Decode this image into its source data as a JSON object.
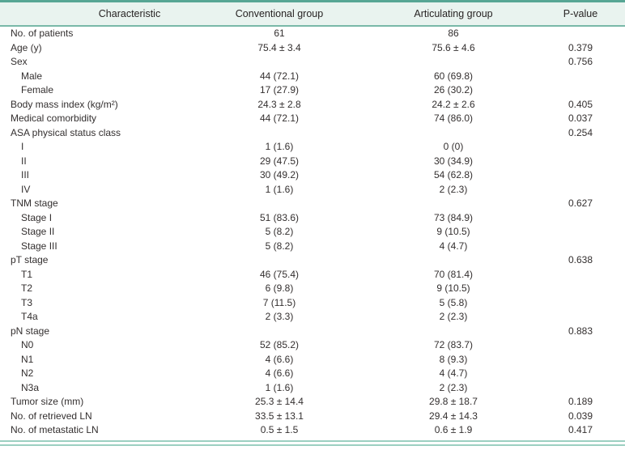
{
  "header": {
    "characteristic": "Characteristic",
    "conventional": "Conventional group",
    "articulating": "Articulating group",
    "p_value": "P-value"
  },
  "colors": {
    "header_bg": "#e9f3ef",
    "rule_dark": "#57a694",
    "rule_medium": "#79b9a8",
    "rule_light": "#9ccfc1",
    "text": "#332f2f"
  },
  "rows": [
    {
      "label": "No. of patients",
      "indent": false,
      "conventional": "61",
      "articulating": "86",
      "p": ""
    },
    {
      "label": "Age (y)",
      "indent": false,
      "conventional": "75.4 ± 3.4",
      "articulating": "75.6 ± 4.6",
      "p": "0.379"
    },
    {
      "label": "Sex",
      "indent": false,
      "conventional": "",
      "articulating": "",
      "p": "0.756"
    },
    {
      "label": "Male",
      "indent": true,
      "conventional": "44 (72.1)",
      "articulating": "60 (69.8)",
      "p": ""
    },
    {
      "label": "Female",
      "indent": true,
      "conventional": "17 (27.9)",
      "articulating": "26 (30.2)",
      "p": ""
    },
    {
      "label": "Body mass index (kg/m²)",
      "indent": false,
      "conventional": "24.3 ± 2.8",
      "articulating": "24.2 ± 2.6",
      "p": "0.405"
    },
    {
      "label": "Medical comorbidity",
      "indent": false,
      "conventional": "44 (72.1)",
      "articulating": "74 (86.0)",
      "p": "0.037"
    },
    {
      "label": "ASA physical status class",
      "indent": false,
      "conventional": "",
      "articulating": "",
      "p": "0.254"
    },
    {
      "label": "I",
      "indent": true,
      "conventional": "1 (1.6)",
      "articulating": "0 (0)",
      "p": ""
    },
    {
      "label": "II",
      "indent": true,
      "conventional": "29 (47.5)",
      "articulating": "30 (34.9)",
      "p": ""
    },
    {
      "label": "III",
      "indent": true,
      "conventional": "30 (49.2)",
      "articulating": "54 (62.8)",
      "p": ""
    },
    {
      "label": "IV",
      "indent": true,
      "conventional": "1 (1.6)",
      "articulating": "2 (2.3)",
      "p": ""
    },
    {
      "label": "TNM stage",
      "indent": false,
      "conventional": "",
      "articulating": "",
      "p": "0.627"
    },
    {
      "label": "Stage I",
      "indent": true,
      "conventional": "51 (83.6)",
      "articulating": "73 (84.9)",
      "p": ""
    },
    {
      "label": "Stage II",
      "indent": true,
      "conventional": "5 (8.2)",
      "articulating": "9 (10.5)",
      "p": ""
    },
    {
      "label": "Stage III",
      "indent": true,
      "conventional": "5 (8.2)",
      "articulating": "4 (4.7)",
      "p": ""
    },
    {
      "label": "pT stage",
      "indent": false,
      "conventional": "",
      "articulating": "",
      "p": "0.638"
    },
    {
      "label": "T1",
      "indent": true,
      "conventional": "46 (75.4)",
      "articulating": "70 (81.4)",
      "p": ""
    },
    {
      "label": "T2",
      "indent": true,
      "conventional": "6 (9.8)",
      "articulating": "9 (10.5)",
      "p": ""
    },
    {
      "label": "T3",
      "indent": true,
      "conventional": "7 (11.5)",
      "articulating": "5 (5.8)",
      "p": ""
    },
    {
      "label": "T4a",
      "indent": true,
      "conventional": "2 (3.3)",
      "articulating": "2 (2.3)",
      "p": ""
    },
    {
      "label": "pN stage",
      "indent": false,
      "conventional": "",
      "articulating": "",
      "p": "0.883"
    },
    {
      "label": "N0",
      "indent": true,
      "conventional": "52 (85.2)",
      "articulating": "72 (83.7)",
      "p": ""
    },
    {
      "label": "N1",
      "indent": true,
      "conventional": "4 (6.6)",
      "articulating": "8 (9.3)",
      "p": ""
    },
    {
      "label": "N2",
      "indent": true,
      "conventional": "4 (6.6)",
      "articulating": "4 (4.7)",
      "p": ""
    },
    {
      "label": "N3a",
      "indent": true,
      "conventional": "1 (1.6)",
      "articulating": "2 (2.3)",
      "p": ""
    },
    {
      "label": "Tumor size (mm)",
      "indent": false,
      "conventional": "25.3 ± 14.4",
      "articulating": "29.8 ± 18.7",
      "p": "0.189"
    },
    {
      "label": "No. of retrieved LN",
      "indent": false,
      "conventional": "33.5 ± 13.1",
      "articulating": "29.4 ± 14.3",
      "p": "0.039"
    },
    {
      "label": "No. of metastatic LN",
      "indent": false,
      "conventional": "0.5 ± 1.5",
      "articulating": "0.6 ± 1.9",
      "p": "0.417"
    }
  ]
}
